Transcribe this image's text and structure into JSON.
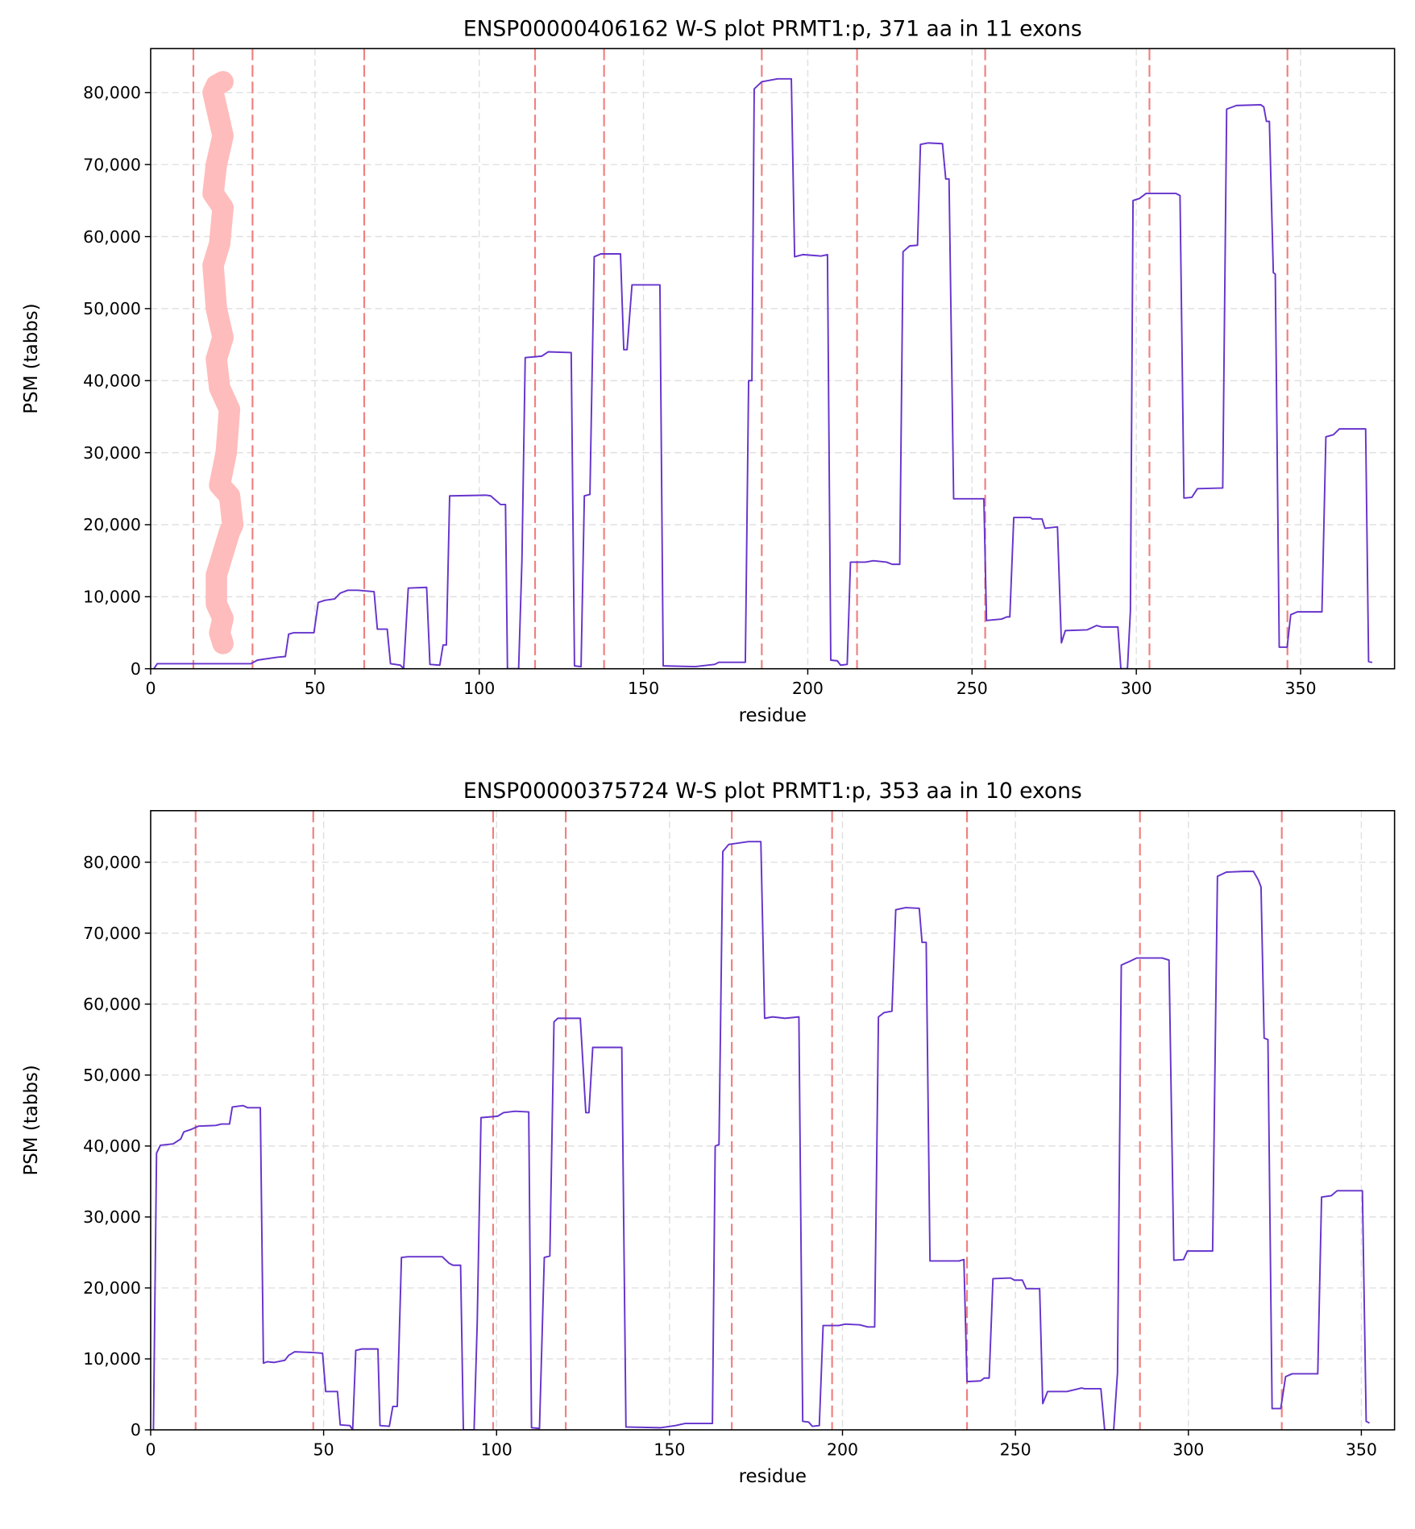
{
  "chart_data": [
    {
      "type": "line",
      "title": "ENSP00000406162 W-S plot PRMT1:p, 371 aa in 11 exons",
      "xlabel": "residue",
      "ylabel": "PSM (tabbs)",
      "xlim": [
        0,
        378.6
      ],
      "ylim": [
        0,
        86100
      ],
      "xticks": [
        0,
        50,
        100,
        150,
        200,
        250,
        300,
        350
      ],
      "yticks": [
        0,
        {
          "value": 10000,
          "label": "10,000"
        },
        {
          "value": 20000,
          "label": "20,000"
        },
        {
          "value": 30000,
          "label": "30,000"
        },
        {
          "value": 40000,
          "label": "40,000"
        },
        {
          "value": 50000,
          "label": "50,000"
        },
        {
          "value": 60000,
          "label": "60,000"
        },
        {
          "value": 70000,
          "label": "70,000"
        },
        {
          "value": 80000,
          "label": "80,000"
        }
      ],
      "grid": true,
      "boundary_color": "#f08080",
      "exon_boundaries": [
        13,
        31,
        65,
        117,
        138,
        186,
        215,
        254,
        304,
        346
      ],
      "series": [
        {
          "color": "#ffbcbc",
          "width": 22,
          "x": [
            22,
            21,
            22,
            20,
            20,
            22,
            24,
            25,
            24,
            21,
            23,
            24,
            21,
            20,
            22,
            20,
            19,
            21,
            22,
            19,
            20,
            22,
            20,
            19,
            20,
            22
          ],
          "values": [
            3500,
            5000,
            7000,
            9000,
            13000,
            16000,
            19000,
            20000,
            24000,
            25500,
            30000,
            36000,
            39000,
            43000,
            46000,
            50000,
            56000,
            59000,
            64000,
            66000,
            70000,
            74000,
            78000,
            80000,
            81000,
            81500
          ]
        },
        {
          "color": "#6633cc",
          "width": 1.6,
          "x": [
            1,
            2,
            30.5,
            32.5,
            38.5,
            41,
            42,
            43.5,
            49.7,
            51,
            53,
            56,
            57.7,
            60,
            63,
            68,
            69,
            72,
            73,
            76,
            77,
            78.4,
            84,
            85,
            88,
            89,
            90,
            91,
            102,
            103.5,
            106.5,
            108,
            108.6,
            112,
            113,
            114,
            119,
            121,
            128,
            129,
            131,
            132,
            133.7,
            135,
            137,
            143,
            144,
            145,
            146.5,
            155,
            156,
            165.7,
            171.6,
            173,
            181,
            182,
            183,
            183.7,
            186,
            190.8,
            195,
            196,
            198.5,
            204,
            206,
            207,
            209,
            210,
            212,
            213,
            217.5,
            220,
            224,
            225.7,
            228,
            229,
            231,
            233.4,
            234.3,
            236.7,
            241,
            242,
            243,
            244.4,
            253.6,
            254.4,
            259,
            260.6,
            261.5,
            262.7,
            267.8,
            268.3,
            271.3,
            272.2,
            276,
            277.2,
            278.4,
            285,
            287.9,
            289.6,
            294.4,
            295.3,
            297.3,
            298.2,
            299,
            301,
            303,
            312,
            313.3,
            314.5,
            316.9,
            318.6,
            326.3,
            327.5,
            330.5,
            337.9,
            338.8,
            339.6,
            340.5,
            341.7,
            342.3,
            343.5,
            345.9,
            347,
            349,
            356.5,
            357.7,
            360,
            361.8,
            369.8,
            370.7,
            371.6
          ],
          "values": [
            0,
            700,
            700,
            1200,
            1600,
            1700,
            4800,
            5000,
            5000,
            9200,
            9500,
            9700,
            10500,
            10900,
            10900,
            10700,
            5500,
            5500,
            700,
            500,
            0,
            11200,
            11300,
            600,
            500,
            3300,
            3300,
            24000,
            24100,
            24000,
            22800,
            22800,
            0,
            0,
            15000,
            43200,
            43400,
            44000,
            43900,
            400,
            300,
            24000,
            24200,
            57200,
            57600,
            57600,
            44300,
            44300,
            53300,
            53300,
            400,
            300,
            600,
            900,
            900,
            40000,
            40000,
            80500,
            81500,
            81900,
            81900,
            57200,
            57500,
            57300,
            57500,
            1200,
            1100,
            500,
            600,
            14800,
            14800,
            15000,
            14800,
            14500,
            14500,
            57900,
            58700,
            58800,
            72800,
            73000,
            72900,
            68000,
            68000,
            23600,
            23600,
            6700,
            6900,
            7200,
            7200,
            21000,
            21000,
            20800,
            20800,
            19500,
            19700,
            3600,
            5300,
            5400,
            6000,
            5800,
            5800,
            0,
            0,
            8000,
            65000,
            65300,
            66000,
            66000,
            65700,
            23700,
            23800,
            25000,
            25100,
            77700,
            78200,
            78300,
            78000,
            76000,
            76000,
            55000,
            54800,
            3000,
            3000,
            7500,
            7900,
            7900,
            32200,
            32500,
            33300,
            33300,
            1000,
            900
          ]
        }
      ]
    },
    {
      "type": "line",
      "title": "ENSP00000375724 W-S plot PRMT1:p, 353 aa in 10 exons",
      "xlabel": "residue",
      "ylabel": "PSM (tabbs)",
      "xlim": [
        0,
        359.6
      ],
      "ylim": [
        0,
        87260
      ],
      "xticks": [
        0,
        50,
        100,
        150,
        200,
        250,
        300,
        350
      ],
      "yticks": [
        0,
        {
          "value": 10000,
          "label": "10,000"
        },
        {
          "value": 20000,
          "label": "20,000"
        },
        {
          "value": 30000,
          "label": "30,000"
        },
        {
          "value": 40000,
          "label": "40,000"
        },
        {
          "value": 50000,
          "label": "50,000"
        },
        {
          "value": 60000,
          "label": "60,000"
        },
        {
          "value": 70000,
          "label": "70,000"
        },
        {
          "value": 80000,
          "label": "80,000"
        }
      ],
      "grid": true,
      "boundary_color": "#f08080",
      "exon_boundaries": [
        13,
        47,
        99,
        120,
        168,
        197,
        236,
        286,
        327
      ],
      "series": [
        {
          "color": "#6633cc",
          "width": 1.6,
          "x": [
            0.8,
            1.7,
            2.8,
            6.5,
            8.7,
            9.6,
            11.5,
            13.8,
            18.8,
            20.5,
            22.8,
            23.6,
            26.7,
            28,
            31.7,
            32.6,
            33.7,
            35.7,
            38.8,
            39.9,
            41.6,
            46.9,
            49.7,
            50.6,
            54,
            54.8,
            57.6,
            58.4,
            59.3,
            61,
            65.7,
            66.3,
            69,
            70,
            71.3,
            72.5,
            74.4,
            84.3,
            86.2,
            87.4,
            89.6,
            90.4,
            93.5,
            94.4,
            95.5,
            100.3,
            102,
            105.3,
            109.3,
            110.1,
            112.4,
            113.8,
            115.4,
            116.6,
            117.7,
            124.2,
            125.8,
            126.7,
            127.8,
            136.2,
            137.4,
            147.5,
            151.7,
            154.5,
            162.4,
            163.2,
            164.3,
            165.4,
            167.1,
            172.8,
            176.4,
            177.5,
            179.8,
            183.4,
            187.4,
            188.5,
            190.2,
            191.3,
            193.3,
            194.4,
            198.9,
            200.8,
            205,
            207.3,
            209.3,
            210.4,
            212,
            214.3,
            215.4,
            218.3,
            222.2,
            223,
            224.2,
            225.3,
            233.7,
            235.1,
            236,
            239.9,
            241,
            242.4,
            243.5,
            248.6,
            249.7,
            252,
            253.1,
            257,
            257.9,
            259.3,
            264.9,
            268.3,
            269.1,
            270,
            274.7,
            275.8,
            278.4,
            279.5,
            280.6,
            282.9,
            285.1,
            292.4,
            294.4,
            295.8,
            298.6,
            299.7,
            307,
            308.4,
            311,
            316,
            318.8,
            320.2,
            321,
            321.9,
            323,
            324.2,
            326.7,
            328.1,
            330,
            337.4,
            338.5,
            341.3,
            343,
            350.3,
            351.4,
            352.2
          ],
          "values": [
            0,
            39000,
            40100,
            40300,
            41000,
            42000,
            42300,
            42800,
            42900,
            43100,
            43100,
            45500,
            45700,
            45400,
            45400,
            9400,
            9600,
            9500,
            9800,
            10500,
            11000,
            10900,
            10800,
            5400,
            5400,
            700,
            600,
            0,
            11200,
            11400,
            11400,
            600,
            500,
            3300,
            3300,
            24300,
            24400,
            24400,
            23500,
            23200,
            23200,
            0,
            0,
            15000,
            44000,
            44200,
            44700,
            44900,
            44800,
            300,
            200,
            24300,
            24500,
            57500,
            58000,
            58000,
            44700,
            44700,
            53900,
            53900,
            400,
            300,
            600,
            900,
            900,
            40000,
            40200,
            81500,
            82500,
            82900,
            82900,
            58000,
            58200,
            58000,
            58200,
            1200,
            1100,
            500,
            600,
            14700,
            14700,
            14900,
            14800,
            14500,
            14500,
            58200,
            58800,
            59000,
            73300,
            73600,
            73500,
            68700,
            68700,
            23800,
            23800,
            24000,
            6800,
            6900,
            7300,
            7300,
            21300,
            21400,
            21100,
            21100,
            19900,
            19900,
            3700,
            5400,
            5400,
            5800,
            5900,
            5800,
            5800,
            0,
            0,
            8000,
            65500,
            66000,
            66500,
            66500,
            66200,
            23900,
            24000,
            25200,
            25200,
            78000,
            78600,
            78700,
            78700,
            77500,
            76500,
            55200,
            55000,
            3000,
            3000,
            7500,
            7900,
            7900,
            32800,
            33000,
            33700,
            33700,
            1200,
            1000
          ]
        }
      ]
    }
  ]
}
